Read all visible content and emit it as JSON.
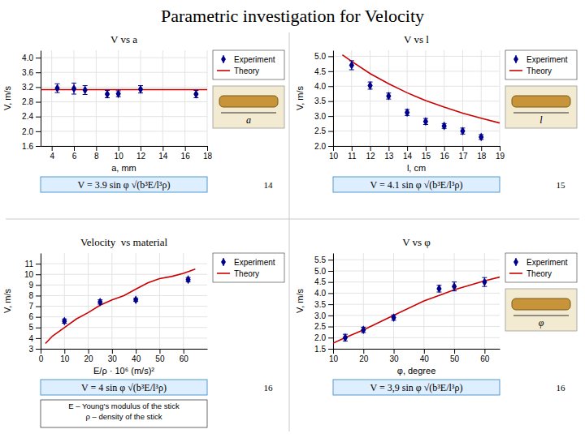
{
  "title": "Parametric investigation for Velocity",
  "chart_data": [
    {
      "type": "line",
      "title": "V vs a",
      "xlabel": "a, mm",
      "ylabel": "V, m/s",
      "xlim": [
        3,
        18
      ],
      "ylim": [
        1.6,
        4.2
      ],
      "xticks": [
        4,
        6,
        8,
        10,
        12,
        14,
        16,
        18
      ],
      "yticks": [
        1.6,
        {
          "value": 2.0,
          "label": "2.0"
        },
        2.4,
        2.8,
        3.2,
        3.6,
        {
          "value": 4.0,
          "label": "4.0"
        }
      ],
      "grid": true,
      "legend": "upper right",
      "series": [
        {
          "name": "Experiment",
          "type": "scatter",
          "marker": "diamond",
          "color": "#00008B",
          "x": [
            4.5,
            6.0,
            7.0,
            9.0,
            10.0,
            12.0,
            17.0
          ],
          "values": [
            3.17,
            3.16,
            3.12,
            3.01,
            3.02,
            3.14,
            3.01
          ],
          "errors": [
            0.12,
            0.15,
            0.12,
            0.1,
            0.08,
            0.1,
            0.1
          ]
        },
        {
          "name": "Theory",
          "type": "line",
          "line_style": "solid",
          "color": "#cc0000",
          "x": [
            3,
            18
          ],
          "values": [
            3.13,
            3.13
          ]
        }
      ],
      "formula": "V = 3.9 sin φ √(b³E/l³ρ)",
      "page": "14",
      "sketch_label": "a"
    },
    {
      "type": "line",
      "title": "V vs l",
      "xlabel": "l, cm",
      "ylabel": "V, m/s",
      "xlim": [
        10,
        19
      ],
      "ylim": [
        2.0,
        5.2
      ],
      "xticks": [
        10,
        11,
        12,
        13,
        14,
        15,
        16,
        17,
        18,
        19
      ],
      "yticks": [
        {
          "value": 2.0,
          "label": "2.0"
        },
        2.5,
        {
          "value": 3.0,
          "label": "3.0"
        },
        3.5,
        {
          "value": 4.0,
          "label": "4.0"
        },
        4.5,
        {
          "value": 5.0,
          "label": "5.0"
        }
      ],
      "grid": true,
      "legend": "upper right",
      "series": [
        {
          "name": "Experiment",
          "type": "scatter",
          "marker": "diamond",
          "color": "#00008B",
          "x": [
            11.0,
            12.0,
            13.0,
            14.0,
            15.0,
            16.0,
            17.0,
            18.0
          ],
          "values": [
            4.7,
            4.02,
            3.67,
            3.12,
            2.82,
            2.67,
            2.5,
            2.3
          ],
          "errors": [
            0.15,
            0.12,
            0.1,
            0.1,
            0.1,
            0.08,
            0.1,
            0.08
          ]
        },
        {
          "name": "Theory",
          "type": "line",
          "line_style": "solid",
          "color": "#cc0000",
          "x": [
            10.5,
            11,
            12,
            13,
            14,
            15,
            16,
            17,
            18,
            19
          ],
          "values": [
            5.05,
            4.83,
            4.42,
            4.08,
            3.78,
            3.52,
            3.3,
            3.1,
            2.93,
            2.77
          ]
        }
      ],
      "formula": "V = 4.1 sin φ √(b³E/l³ρ)",
      "page": "15",
      "sketch_label": "l"
    },
    {
      "type": "line",
      "title": "Velocity  vs material",
      "xlabel": "E/ρ · 10⁶ (m/s)²",
      "ylabel": "V, m/s",
      "xlim": [
        0,
        70
      ],
      "ylim": [
        3,
        12
      ],
      "xticks": [
        0,
        10,
        20,
        30,
        40,
        50,
        60
      ],
      "yticks": [
        3,
        4,
        5,
        6,
        7,
        8,
        9,
        10,
        11
      ],
      "grid": true,
      "legend": "upper right",
      "series": [
        {
          "name": "Experiment",
          "type": "scatter",
          "marker": "diamond",
          "color": "#00008B",
          "x": [
            10.0,
            25.0,
            40.0,
            62.0
          ],
          "values": [
            5.6,
            7.4,
            7.6,
            9.5
          ],
          "errors": [
            0.2,
            0.2,
            0.15,
            0.2
          ]
        },
        {
          "name": "Theory",
          "type": "line",
          "line_style": "solid",
          "color": "#cc0000",
          "x": [
            2,
            5,
            10,
            15,
            20,
            25,
            30,
            35,
            40,
            45,
            50,
            55,
            60,
            65
          ],
          "values": [
            3.5,
            4.2,
            5.0,
            5.8,
            6.4,
            7.1,
            7.6,
            8.0,
            8.6,
            9.2,
            9.6,
            9.8,
            10.1,
            10.5
          ]
        }
      ],
      "formula": "V = 4 sin φ √(b³E/l³ρ)",
      "page": "16",
      "note": [
        "E – Young's modulus of the stick",
        "ρ – density of the stick"
      ]
    },
    {
      "type": "line",
      "title": "V vs φ",
      "xlabel": "φ, degree",
      "ylabel": "V, m/s",
      "xlim": [
        10,
        65
      ],
      "ylim": [
        1.5,
        5.8
      ],
      "xticks": [
        10,
        20,
        30,
        40,
        50,
        60
      ],
      "yticks": [
        1.5,
        {
          "value": 2.0,
          "label": "2.0"
        },
        2.5,
        {
          "value": 3.0,
          "label": "3.0"
        },
        3.5,
        {
          "value": 4.0,
          "label": "4.0"
        },
        4.5,
        {
          "value": 5.0,
          "label": "5.0"
        },
        5.5
      ],
      "grid": true,
      "legend": "upper right",
      "series": [
        {
          "name": "Experiment",
          "type": "scatter",
          "marker": "diamond",
          "color": "#00008B",
          "x": [
            14,
            20,
            30,
            45,
            50,
            60
          ],
          "values": [
            2.0,
            2.35,
            2.9,
            4.2,
            4.3,
            4.5
          ],
          "errors": [
            0.15,
            0.12,
            0.12,
            0.15,
            0.2,
            0.2
          ]
        },
        {
          "name": "Theory",
          "type": "line",
          "line_style": "solid",
          "color": "#cc0000",
          "x": [
            10,
            14,
            20,
            30,
            40,
            45,
            50,
            55,
            60,
            65
          ],
          "values": [
            1.75,
            2.0,
            2.35,
            3.0,
            3.65,
            3.9,
            4.15,
            4.35,
            4.55,
            4.72
          ]
        }
      ],
      "formula": "V = 3,9 sin φ √(b³E/l³ρ)",
      "page": "16",
      "sketch_label": "φ"
    }
  ]
}
